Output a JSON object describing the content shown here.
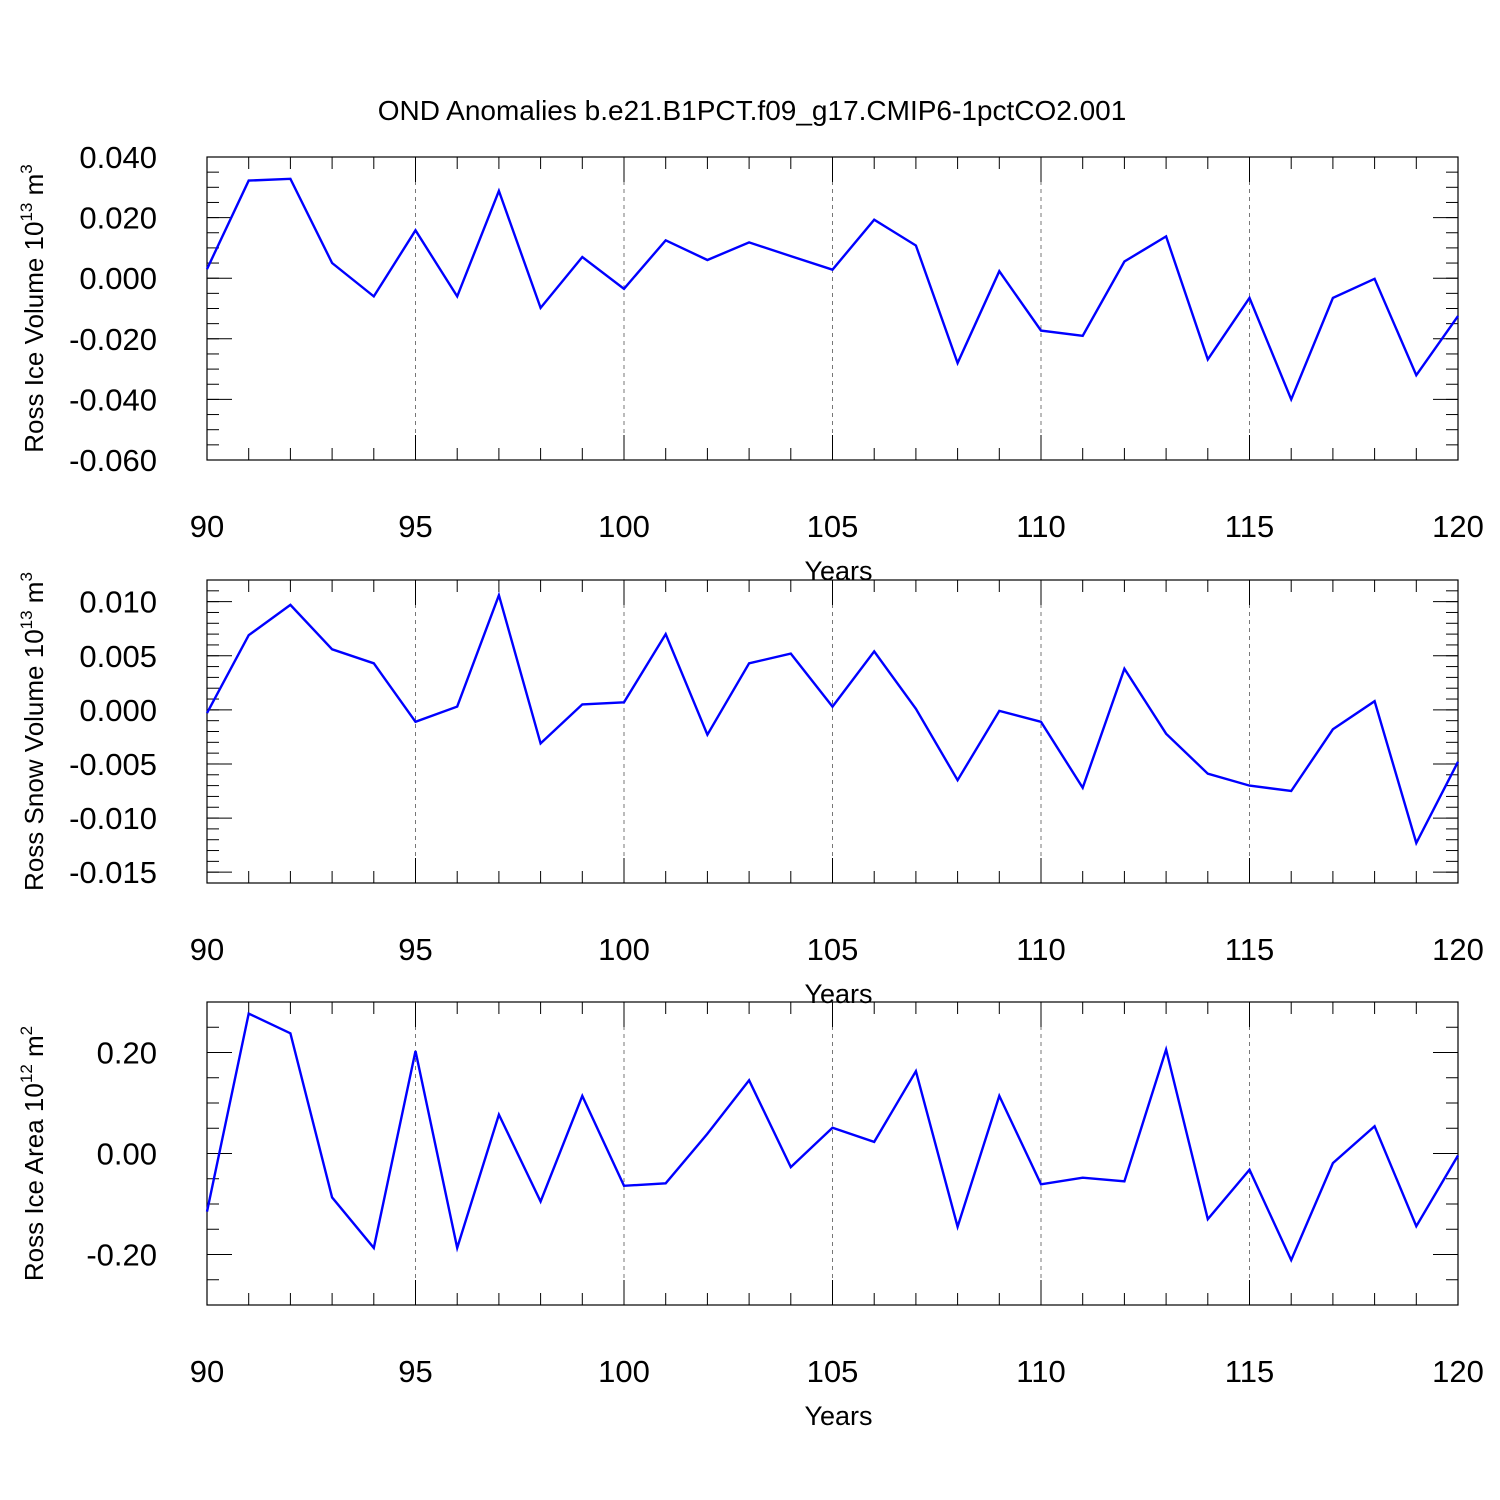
{
  "title": "OND Anomalies b.e21.B1PCT.f09_g17.CMIP6-1pctCO2.001",
  "x_axis_label": "Years",
  "x_ticks": [
    90,
    95,
    100,
    105,
    110,
    115,
    120
  ],
  "line_color": "#0000ff",
  "chart_data": [
    {
      "type": "line",
      "title": "OND Anomalies b.e21.B1PCT.f09_g17.CMIP6-1pctCO2.001",
      "xlabel": "Years",
      "ylabel_text": "Ross Ice Volume 10",
      "ylabel_exp": "13",
      "ylabel_unit": "m",
      "ylabel_unit_exp": "3",
      "xlim": [
        90,
        120
      ],
      "ylim": [
        -0.06,
        0.04
      ],
      "yticks": [
        0.04,
        0.02,
        0.0,
        -0.02,
        -0.04,
        -0.06
      ],
      "ytick_labels": [
        "0.040",
        "0.020",
        "0.000",
        "-0.020",
        "-0.040",
        "-0.060"
      ],
      "grid": "dashed vertical lines at x ticks",
      "series": [
        {
          "x": [
            90,
            91,
            92,
            93,
            94,
            95,
            96,
            97,
            98,
            99,
            100,
            101,
            102,
            103,
            104,
            105,
            106,
            107,
            108,
            109,
            110,
            111,
            112,
            113,
            114,
            115,
            116,
            117,
            118,
            119,
            120
          ],
          "values": [
            0.003,
            0.0322,
            0.0328,
            0.005,
            -0.006,
            0.0158,
            -0.006,
            0.0288,
            -0.0098,
            0.007,
            -0.0035,
            0.0125,
            0.006,
            0.0118,
            0.0073,
            0.0028,
            0.0193,
            0.0108,
            -0.028,
            0.0023,
            -0.0173,
            -0.019,
            0.0055,
            0.0138,
            -0.0268,
            -0.0065,
            -0.04,
            -0.0065,
            -0.0002,
            -0.032,
            -0.0125
          ]
        }
      ]
    },
    {
      "type": "line",
      "xlabel": "Years",
      "ylabel_text": "Ross Snow Volume 10",
      "ylabel_exp": "13",
      "ylabel_unit": "m",
      "ylabel_unit_exp": "3",
      "xlim": [
        90,
        120
      ],
      "ylim": [
        -0.016,
        0.012
      ],
      "yticks": [
        0.01,
        0.005,
        0.0,
        -0.005,
        -0.01,
        -0.015
      ],
      "ytick_labels": [
        "0.010",
        "0.005",
        "0.000",
        "-0.005",
        "-0.010",
        "-0.015"
      ],
      "grid": "dashed vertical lines at x ticks",
      "series": [
        {
          "x": [
            90,
            91,
            92,
            93,
            94,
            95,
            96,
            97,
            98,
            99,
            100,
            101,
            102,
            103,
            104,
            105,
            106,
            107,
            108,
            109,
            110,
            111,
            112,
            113,
            114,
            115,
            116,
            117,
            118,
            119,
            120
          ],
          "values": [
            -0.0003,
            0.0069,
            0.0097,
            0.0056,
            0.0043,
            -0.0011,
            0.0003,
            0.0106,
            -0.0031,
            0.0005,
            0.0007,
            0.007,
            -0.0023,
            0.0043,
            0.0052,
            0.0003,
            0.0054,
            0.0001,
            -0.0065,
            -0.0001,
            -0.0011,
            -0.0072,
            0.0038,
            -0.0022,
            -0.0059,
            -0.007,
            -0.0075,
            -0.0018,
            0.0008,
            -0.0123,
            -0.0048
          ]
        }
      ]
    },
    {
      "type": "line",
      "xlabel": "Years",
      "ylabel_text": "Ross Ice Area 10",
      "ylabel_exp": "12",
      "ylabel_unit": "m",
      "ylabel_unit_exp": "2",
      "xlim": [
        90,
        120
      ],
      "ylim": [
        -0.3,
        0.3
      ],
      "yticks": [
        0.2,
        0.0,
        -0.2
      ],
      "ytick_labels": [
        "0.20",
        "0.00",
        "-0.20"
      ],
      "grid": "dashed vertical lines at x ticks",
      "series": [
        {
          "x": [
            90,
            91,
            92,
            93,
            94,
            95,
            96,
            97,
            98,
            99,
            100,
            101,
            102,
            103,
            104,
            105,
            106,
            107,
            108,
            109,
            110,
            111,
            112,
            113,
            114,
            115,
            116,
            117,
            118,
            119,
            120
          ],
          "values": [
            -0.115,
            0.277,
            0.238,
            -0.087,
            -0.187,
            0.203,
            -0.187,
            0.077,
            -0.095,
            0.114,
            -0.064,
            -0.059,
            0.039,
            0.145,
            -0.027,
            0.051,
            0.023,
            0.163,
            -0.145,
            0.114,
            -0.061,
            -0.048,
            -0.055,
            0.206,
            -0.13,
            -0.032,
            -0.211,
            -0.019,
            0.054,
            -0.144,
            -0.004
          ]
        }
      ]
    }
  ]
}
